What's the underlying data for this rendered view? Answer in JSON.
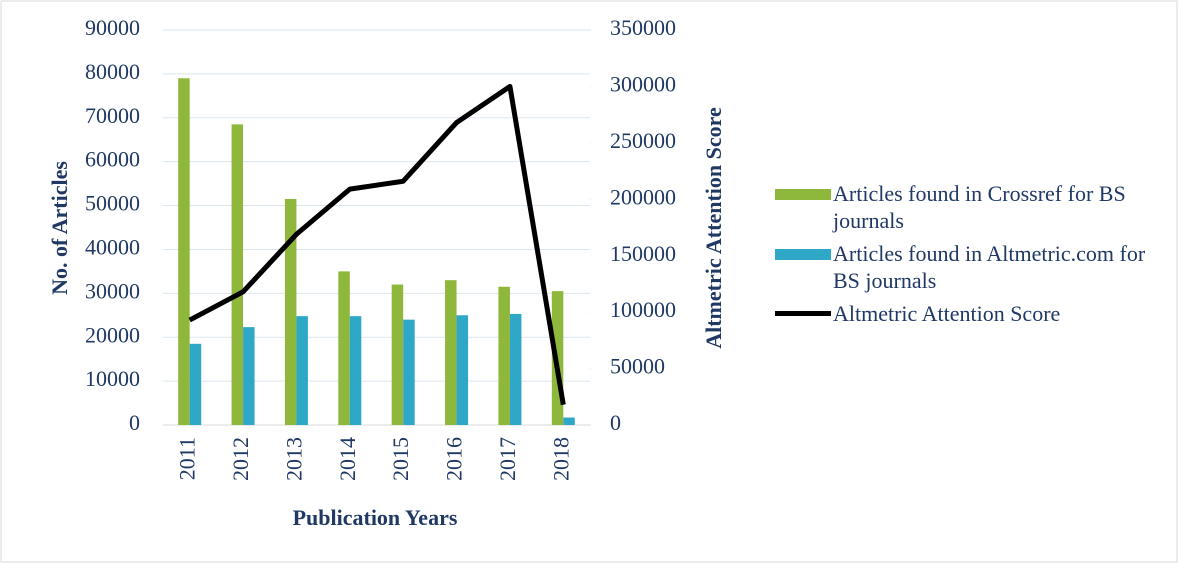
{
  "chart_data": {
    "type": "bar",
    "categories": [
      "2011",
      "2012",
      "2013",
      "2014",
      "2015",
      "2016",
      "2017",
      "2018"
    ],
    "series": [
      {
        "name": "Articles found in Crossref for BS journals",
        "type": "bar",
        "color": "#8db83b",
        "values": [
          79000,
          68500,
          51500,
          35000,
          32000,
          33000,
          31500,
          30500
        ]
      },
      {
        "name": "Articles found in Altmetric.com for BS journals",
        "type": "bar",
        "color": "#2fa8c8",
        "values": [
          18500,
          22300,
          24800,
          24800,
          24000,
          25000,
          25300,
          1700
        ]
      },
      {
        "name": "Altmetric Attention Score",
        "type": "line",
        "axis": "y2",
        "color": "#000000",
        "values": [
          93000,
          118000,
          169000,
          209000,
          216000,
          268000,
          300000,
          18000
        ]
      }
    ],
    "xlabel": "Publication Years",
    "ylabel": "No. of Articles",
    "y2label": "Altmetric Attention Score",
    "ylim": [
      0,
      90000
    ],
    "yticks": [
      0,
      10000,
      20000,
      30000,
      40000,
      50000,
      60000,
      70000,
      80000,
      90000
    ],
    "y2lim": [
      0,
      350000
    ],
    "y2ticks": [
      0,
      50000,
      100000,
      150000,
      200000,
      250000,
      300000,
      350000
    ],
    "grid": true,
    "legend": "right"
  }
}
